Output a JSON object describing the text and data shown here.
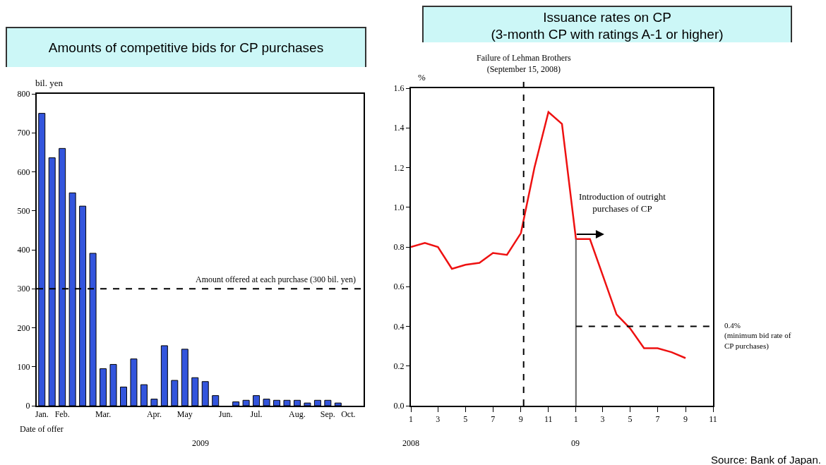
{
  "chart_data": [
    {
      "type": "bar",
      "title": "Amounts of competitive bids for CP purchases",
      "xlabel": "2009",
      "ylabel": "bil. yen",
      "categories": [
        "Jan.",
        null,
        "Feb.",
        null,
        null,
        null,
        "Mar.",
        null,
        null,
        null,
        null,
        "Apr.",
        null,
        null,
        "May",
        null,
        null,
        null,
        "Jun.",
        null,
        null,
        "Jul.",
        null,
        null,
        null,
        "Aug.",
        null,
        null,
        "Sep.",
        null,
        "Oct.",
        null
      ],
      "values": [
        750,
        636,
        660,
        546,
        512,
        391,
        95,
        106,
        48,
        120,
        54,
        17,
        154,
        65,
        145,
        72,
        62,
        26,
        null,
        10,
        14,
        26,
        17,
        14,
        14,
        14,
        7,
        14,
        14,
        7,
        null,
        null
      ],
      "color": "#3355dd",
      "ylim": [
        0,
        800
      ],
      "yticks": [
        0,
        100,
        200,
        300,
        400,
        500,
        600,
        700,
        800
      ],
      "ref_lines": [
        {
          "axis": "y",
          "value": 300,
          "label": "Amount offered at each purchase (300 bil. yen)",
          "color": "#000000",
          "line_style": "dashed"
        }
      ],
      "annotations": [
        "Date of offer"
      ],
      "grid": false
    },
    {
      "type": "line",
      "title": "Issuance rates on CP\n(3-month CP with ratings A-1 or higher)",
      "ylabel": "%",
      "series": [
        {
          "color": "#ee1111",
          "x": [
            "2008-01",
            "2008-02",
            "2008-03",
            "2008-04",
            "2008-05",
            "2008-06",
            "2008-07",
            "2008-08",
            "2008-09",
            "2008-10",
            "2008-11",
            "2008-12",
            "2009-01",
            "2009-02",
            "2009-03",
            "2009-04",
            "2009-05",
            "2009-06",
            "2009-07",
            "2009-08",
            "2009-09"
          ],
          "values": [
            0.8,
            0.82,
            0.8,
            0.69,
            0.71,
            0.72,
            0.77,
            0.76,
            0.87,
            1.2,
            1.48,
            1.42,
            0.84,
            0.84,
            0.66,
            0.46,
            0.39,
            0.29,
            0.29,
            0.27,
            0.24
          ]
        },
        {
          "type": "line",
          "color": "#666666",
          "x": [
            "2009-01",
            "2009-01"
          ],
          "values": [
            0,
            0.84
          ],
          "line_style": "solid"
        },
        {
          "type": "line",
          "color": "#000000",
          "x": [
            "2009-01",
            "2009-11"
          ],
          "values": [
            0.4,
            0.4
          ],
          "line_style": "dashed"
        }
      ],
      "xlim": [
        "2008-01",
        "2009-11"
      ],
      "xticks": [
        {
          "value": "2008-01",
          "label": "1"
        },
        {
          "value": "2008-03",
          "label": "3"
        },
        {
          "value": "2008-05",
          "label": "5"
        },
        {
          "value": "2008-07",
          "label": "7"
        },
        {
          "value": "2008-09",
          "label": "9"
        },
        {
          "value": "2008-11",
          "label": "11"
        },
        {
          "value": "2009-01",
          "label": "1"
        },
        {
          "value": "2009-03",
          "label": "3"
        },
        {
          "value": "2009-05",
          "label": "5"
        },
        {
          "value": "2009-07",
          "label": "7"
        },
        {
          "value": "2009-09",
          "label": "9"
        },
        {
          "value": "2009-11",
          "label": "11"
        }
      ],
      "ylim": [
        0,
        1.6
      ],
      "yticks": [
        {
          "value": 0,
          "label": "0.0"
        },
        0.2,
        0.4,
        0.6,
        0.8,
        {
          "value": 1,
          "label": "1.0"
        },
        1.2,
        1.4,
        1.6
      ],
      "ref_lines": [
        {
          "axis": "x",
          "value": "2008-09-07",
          "label": "Failure of Lehman Brothers\n(September 15, 2008)",
          "color": "#000000",
          "line_style": "dashed"
        }
      ],
      "annotations": [
        "Introduction of outright\npurchases of CP",
        "2008",
        "09",
        {
          "text": "0.4%\n(minimum bid rate of\nCP purchases)",
          "x": "2009-11",
          "y": 0.4
        },
        "Source: Bank of Japan."
      ],
      "grid": false
    }
  ]
}
